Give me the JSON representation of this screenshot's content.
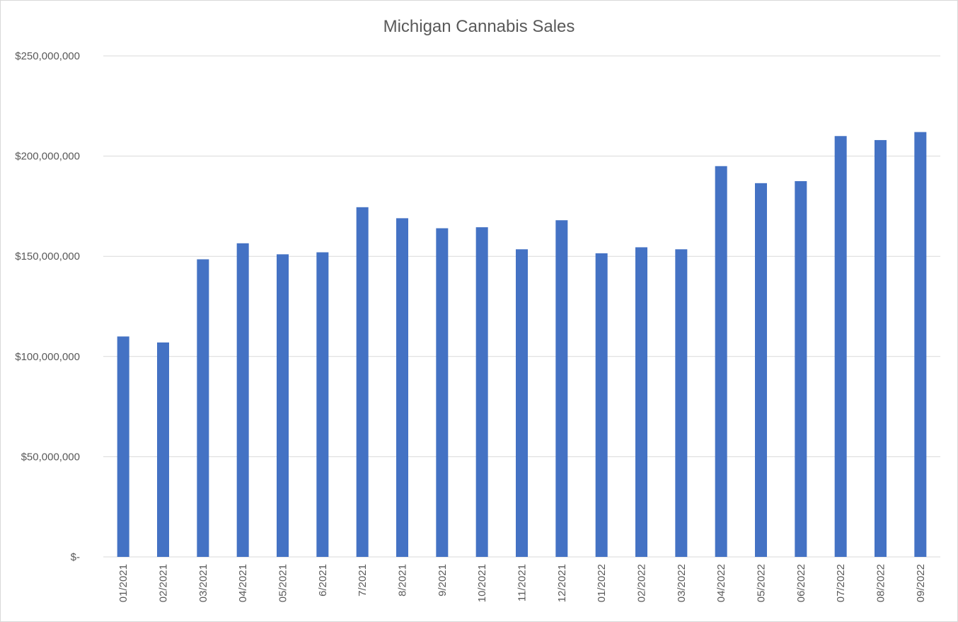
{
  "chart_data": {
    "type": "bar",
    "title": "Michigan Cannabis Sales",
    "xlabel": "",
    "ylabel": "",
    "categories": [
      "01/2021",
      "02/2021",
      "03/2021",
      "04/2021",
      "05/2021",
      "6/2021",
      "7/2021",
      "8/2021",
      "9/2021",
      "10/2021",
      "11/2021",
      "12/2021",
      "01/2022",
      "02/2022",
      "03/2022",
      "04/2022",
      "05/2022",
      "06/2022",
      "07/2022",
      "08/2022",
      "09/2022"
    ],
    "values": [
      110000000,
      107000000,
      148500000,
      156500000,
      151000000,
      152000000,
      174500000,
      169000000,
      164000000,
      164500000,
      153500000,
      168000000,
      151500000,
      154500000,
      153500000,
      195000000,
      186500000,
      187500000,
      210000000,
      208000000,
      212000000
    ],
    "ylim": [
      0,
      250000000
    ],
    "yticks": [
      0,
      50000000,
      100000000,
      150000000,
      200000000,
      250000000
    ],
    "ytick_labels": [
      "$-",
      "$50,000,000",
      "$100,000,000",
      "$150,000,000",
      "$200,000,000",
      "$250,000,000"
    ],
    "grid": true,
    "legend": "none",
    "bar_color": "#4472c4"
  }
}
